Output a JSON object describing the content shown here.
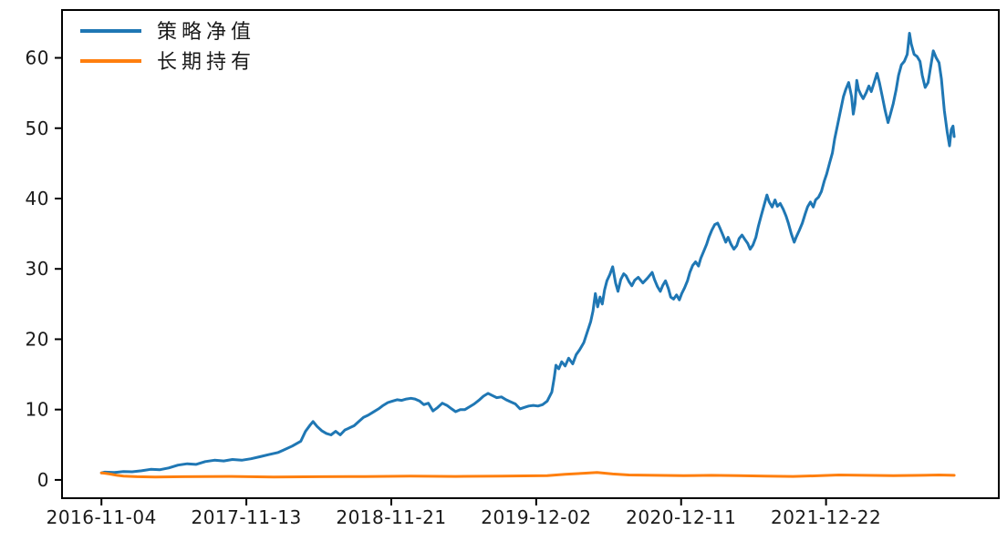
{
  "chart_data": {
    "type": "line",
    "title": "",
    "xlabel": "",
    "ylabel": "",
    "x_unit": "trading-day index starting 2016-11-04",
    "xlim": [
      -68,
      1548
    ],
    "ylim": [
      -2.6,
      66.8
    ],
    "grid": false,
    "legend_position": "upper-left",
    "x_ticks": [
      {
        "pos": 0,
        "label": "2016-11-04"
      },
      {
        "pos": 250,
        "label": "2017-11-13"
      },
      {
        "pos": 500,
        "label": "2018-11-21"
      },
      {
        "pos": 750,
        "label": "2019-12-02"
      },
      {
        "pos": 1000,
        "label": "2020-12-11"
      },
      {
        "pos": 1250,
        "label": "2021-12-22"
      }
    ],
    "y_ticks": [
      0,
      10,
      20,
      30,
      40,
      50,
      60
    ],
    "series": [
      {
        "id": "strategy-net-value",
        "name": "策略净值",
        "color": "#1f77b4",
        "points": [
          [
            0,
            1.0
          ],
          [
            6,
            1.1
          ],
          [
            22,
            1.05
          ],
          [
            38,
            1.2
          ],
          [
            53,
            1.15
          ],
          [
            69,
            1.3
          ],
          [
            85,
            1.5
          ],
          [
            101,
            1.45
          ],
          [
            116,
            1.7
          ],
          [
            132,
            2.1
          ],
          [
            148,
            2.3
          ],
          [
            163,
            2.2
          ],
          [
            179,
            2.6
          ],
          [
            195,
            2.8
          ],
          [
            211,
            2.7
          ],
          [
            226,
            2.9
          ],
          [
            242,
            2.8
          ],
          [
            258,
            3.0
          ],
          [
            274,
            3.3
          ],
          [
            289,
            3.6
          ],
          [
            305,
            3.9
          ],
          [
            313,
            4.2
          ],
          [
            329,
            4.8
          ],
          [
            344,
            5.5
          ],
          [
            352,
            6.9
          ],
          [
            360,
            7.8
          ],
          [
            365,
            8.3
          ],
          [
            372,
            7.6
          ],
          [
            380,
            7.0
          ],
          [
            388,
            6.6
          ],
          [
            396,
            6.4
          ],
          [
            404,
            6.9
          ],
          [
            412,
            6.4
          ],
          [
            420,
            7.1
          ],
          [
            428,
            7.4
          ],
          [
            436,
            7.7
          ],
          [
            444,
            8.3
          ],
          [
            452,
            8.9
          ],
          [
            460,
            9.2
          ],
          [
            468,
            9.6
          ],
          [
            478,
            10.1
          ],
          [
            486,
            10.6
          ],
          [
            494,
            11.0
          ],
          [
            502,
            11.2
          ],
          [
            510,
            11.4
          ],
          [
            518,
            11.3
          ],
          [
            526,
            11.5
          ],
          [
            534,
            11.6
          ],
          [
            541,
            11.5
          ],
          [
            549,
            11.2
          ],
          [
            556,
            10.7
          ],
          [
            564,
            10.9
          ],
          [
            572,
            9.8
          ],
          [
            580,
            10.3
          ],
          [
            588,
            10.9
          ],
          [
            596,
            10.6
          ],
          [
            604,
            10.1
          ],
          [
            611,
            9.7
          ],
          [
            619,
            10.0
          ],
          [
            627,
            10.0
          ],
          [
            635,
            10.4
          ],
          [
            643,
            10.8
          ],
          [
            651,
            11.3
          ],
          [
            659,
            11.9
          ],
          [
            667,
            12.3
          ],
          [
            674,
            12.0
          ],
          [
            682,
            11.7
          ],
          [
            690,
            11.8
          ],
          [
            698,
            11.4
          ],
          [
            706,
            11.1
          ],
          [
            714,
            10.8
          ],
          [
            722,
            10.1
          ],
          [
            729,
            10.3
          ],
          [
            737,
            10.5
          ],
          [
            745,
            10.6
          ],
          [
            753,
            10.5
          ],
          [
            761,
            10.7
          ],
          [
            769,
            11.2
          ],
          [
            777,
            12.5
          ],
          [
            781,
            14.5
          ],
          [
            784,
            16.3
          ],
          [
            789,
            15.8
          ],
          [
            794,
            16.8
          ],
          [
            800,
            16.2
          ],
          [
            806,
            17.3
          ],
          [
            813,
            16.5
          ],
          [
            819,
            17.8
          ],
          [
            825,
            18.5
          ],
          [
            832,
            19.5
          ],
          [
            838,
            21.0
          ],
          [
            844,
            22.5
          ],
          [
            848,
            24.0
          ],
          [
            852,
            26.5
          ],
          [
            856,
            24.6
          ],
          [
            860,
            26.0
          ],
          [
            864,
            25.0
          ],
          [
            868,
            27.0
          ],
          [
            872,
            28.3
          ],
          [
            877,
            29.2
          ],
          [
            882,
            30.3
          ],
          [
            887,
            28.0
          ],
          [
            891,
            26.8
          ],
          [
            896,
            28.5
          ],
          [
            901,
            29.3
          ],
          [
            905,
            29.0
          ],
          [
            910,
            28.2
          ],
          [
            915,
            27.6
          ],
          [
            920,
            28.4
          ],
          [
            926,
            28.8
          ],
          [
            934,
            28.0
          ],
          [
            942,
            28.7
          ],
          [
            950,
            29.5
          ],
          [
            954,
            28.5
          ],
          [
            959,
            27.5
          ],
          [
            964,
            26.8
          ],
          [
            968,
            27.6
          ],
          [
            973,
            28.3
          ],
          [
            978,
            27.2
          ],
          [
            982,
            26.0
          ],
          [
            987,
            25.7
          ],
          [
            992,
            26.3
          ],
          [
            997,
            25.6
          ],
          [
            1001,
            26.5
          ],
          [
            1006,
            27.3
          ],
          [
            1011,
            28.3
          ],
          [
            1015,
            29.5
          ],
          [
            1020,
            30.5
          ],
          [
            1025,
            31.0
          ],
          [
            1030,
            30.4
          ],
          [
            1034,
            31.5
          ],
          [
            1039,
            32.5
          ],
          [
            1044,
            33.5
          ],
          [
            1048,
            34.5
          ],
          [
            1053,
            35.5
          ],
          [
            1058,
            36.3
          ],
          [
            1063,
            36.5
          ],
          [
            1067,
            35.8
          ],
          [
            1072,
            34.8
          ],
          [
            1077,
            33.8
          ],
          [
            1081,
            34.5
          ],
          [
            1086,
            33.5
          ],
          [
            1091,
            32.8
          ],
          [
            1096,
            33.3
          ],
          [
            1100,
            34.3
          ],
          [
            1105,
            34.8
          ],
          [
            1110,
            34.2
          ],
          [
            1115,
            33.6
          ],
          [
            1119,
            32.8
          ],
          [
            1124,
            33.4
          ],
          [
            1129,
            34.5
          ],
          [
            1133,
            36.0
          ],
          [
            1138,
            37.5
          ],
          [
            1143,
            39.0
          ],
          [
            1148,
            40.5
          ],
          [
            1152,
            39.5
          ],
          [
            1157,
            38.8
          ],
          [
            1162,
            39.8
          ],
          [
            1166,
            38.9
          ],
          [
            1171,
            39.3
          ],
          [
            1176,
            38.5
          ],
          [
            1181,
            37.5
          ],
          [
            1185,
            36.5
          ],
          [
            1190,
            35.0
          ],
          [
            1195,
            33.8
          ],
          [
            1199,
            34.6
          ],
          [
            1204,
            35.5
          ],
          [
            1209,
            36.5
          ],
          [
            1214,
            37.8
          ],
          [
            1218,
            38.8
          ],
          [
            1223,
            39.5
          ],
          [
            1228,
            38.8
          ],
          [
            1232,
            39.8
          ],
          [
            1237,
            40.2
          ],
          [
            1242,
            41.0
          ],
          [
            1247,
            42.5
          ],
          [
            1251,
            43.5
          ],
          [
            1256,
            45.0
          ],
          [
            1261,
            46.5
          ],
          [
            1265,
            48.5
          ],
          [
            1270,
            50.5
          ],
          [
            1275,
            52.5
          ],
          [
            1280,
            54.5
          ],
          [
            1284,
            55.5
          ],
          [
            1289,
            56.5
          ],
          [
            1294,
            54.5
          ],
          [
            1297,
            52.0
          ],
          [
            1300,
            53.5
          ],
          [
            1303,
            56.8
          ],
          [
            1306,
            55.5
          ],
          [
            1310,
            54.8
          ],
          [
            1314,
            54.2
          ],
          [
            1319,
            55.0
          ],
          [
            1324,
            56.0
          ],
          [
            1328,
            55.2
          ],
          [
            1333,
            56.5
          ],
          [
            1338,
            57.8
          ],
          [
            1342,
            56.5
          ],
          [
            1347,
            54.5
          ],
          [
            1352,
            52.5
          ],
          [
            1357,
            50.8
          ],
          [
            1361,
            52.0
          ],
          [
            1366,
            53.5
          ],
          [
            1371,
            55.5
          ],
          [
            1375,
            57.5
          ],
          [
            1380,
            59.0
          ],
          [
            1385,
            59.5
          ],
          [
            1390,
            60.5
          ],
          [
            1394,
            63.5
          ],
          [
            1397,
            62.0
          ],
          [
            1402,
            60.5
          ],
          [
            1407,
            60.2
          ],
          [
            1412,
            59.5
          ],
          [
            1416,
            57.5
          ],
          [
            1421,
            55.8
          ],
          [
            1426,
            56.5
          ],
          [
            1430,
            58.5
          ],
          [
            1435,
            61.0
          ],
          [
            1440,
            60.0
          ],
          [
            1445,
            59.3
          ],
          [
            1449,
            57.0
          ],
          [
            1454,
            52.5
          ],
          [
            1459,
            49.5
          ],
          [
            1463,
            47.5
          ],
          [
            1466,
            49.8
          ],
          [
            1469,
            50.3
          ],
          [
            1471,
            48.8
          ]
        ]
      },
      {
        "id": "long-term-hold",
        "name": "长期持有",
        "color": "#ff7f0e",
        "points": [
          [
            0,
            1.0
          ],
          [
            6,
            0.95
          ],
          [
            14,
            0.85
          ],
          [
            27,
            0.65
          ],
          [
            38,
            0.55
          ],
          [
            61,
            0.45
          ],
          [
            93,
            0.4
          ],
          [
            140,
            0.45
          ],
          [
            219,
            0.5
          ],
          [
            297,
            0.42
          ],
          [
            376,
            0.45
          ],
          [
            454,
            0.48
          ],
          [
            533,
            0.55
          ],
          [
            611,
            0.5
          ],
          [
            690,
            0.55
          ],
          [
            769,
            0.6
          ],
          [
            800,
            0.8
          ],
          [
            832,
            0.95
          ],
          [
            855,
            1.05
          ],
          [
            882,
            0.85
          ],
          [
            910,
            0.7
          ],
          [
            957,
            0.65
          ],
          [
            1004,
            0.6
          ],
          [
            1052,
            0.65
          ],
          [
            1099,
            0.6
          ],
          [
            1146,
            0.55
          ],
          [
            1193,
            0.5
          ],
          [
            1240,
            0.6
          ],
          [
            1272,
            0.7
          ],
          [
            1319,
            0.65
          ],
          [
            1366,
            0.6
          ],
          [
            1413,
            0.65
          ],
          [
            1445,
            0.7
          ],
          [
            1471,
            0.65
          ]
        ]
      }
    ]
  },
  "colors": {
    "background": "#ffffff",
    "spine": "#000000",
    "tick_label": "#1a1a1a",
    "series_blue": "#1f77b4",
    "series_orange": "#ff7f0e"
  }
}
